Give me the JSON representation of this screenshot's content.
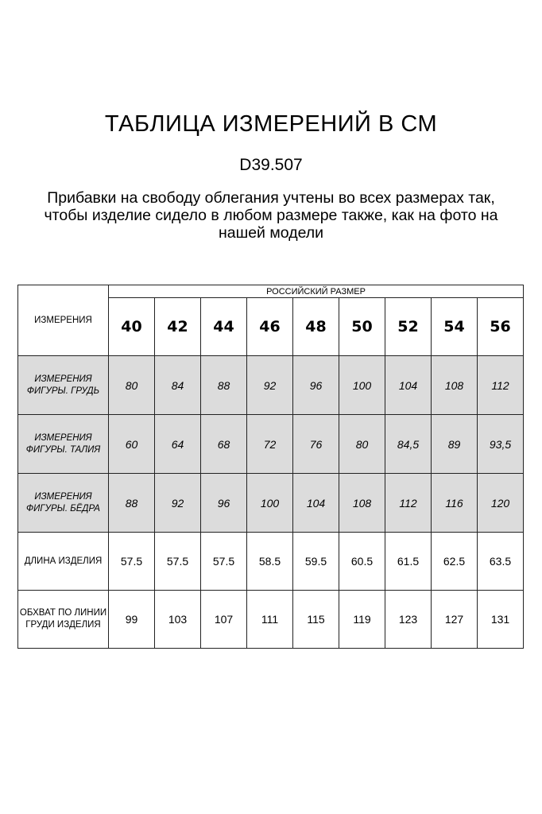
{
  "title": "ТАБЛИЦА ИЗМЕРЕНИЙ В СМ",
  "code": "D39.507",
  "note": "Прибавки на свободу облегания учтены во всех размерах так, чтобы изделие сидело в любом размере также, как на фото на нашей модели",
  "table": {
    "corner": "ИЗМЕРЕНИЯ",
    "group_header": "РОССИЙСКИЙ РАЗМЕР",
    "sizes": [
      "40",
      "42",
      "44",
      "46",
      "48",
      "50",
      "52",
      "54",
      "56"
    ],
    "rows": [
      {
        "label": "ИЗМЕРЕНИЯ ФИГУРЫ. ГРУДЬ",
        "values": [
          "80",
          "84",
          "88",
          "92",
          "96",
          "100",
          "104",
          "108",
          "112"
        ]
      },
      {
        "label": "ИЗМЕРЕНИЯ ФИГУРЫ. ТАЛИЯ",
        "values": [
          "60",
          "64",
          "68",
          "72",
          "76",
          "80",
          "84,5",
          "89",
          "93,5"
        ]
      },
      {
        "label": "ИЗМЕРЕНИЯ ФИГУРЫ. БЁДРА",
        "values": [
          "88",
          "92",
          "96",
          "100",
          "104",
          "108",
          "112",
          "116",
          "120"
        ]
      },
      {
        "label": "ДЛИНА ИЗДЕЛИЯ",
        "values": [
          "57.5",
          "57.5",
          "57.5",
          "58.5",
          "59.5",
          "60.5",
          "61.5",
          "62.5",
          "63.5"
        ]
      },
      {
        "label": "ОБХВАТ ПО ЛИНИИ ГРУДИ ИЗДЕЛИЯ",
        "values": [
          "99",
          "103",
          "107",
          "111",
          "115",
          "119",
          "123",
          "127",
          "131"
        ]
      }
    ]
  },
  "colors": {
    "shaded_row": "#dcdcdc",
    "border": "#222222"
  }
}
